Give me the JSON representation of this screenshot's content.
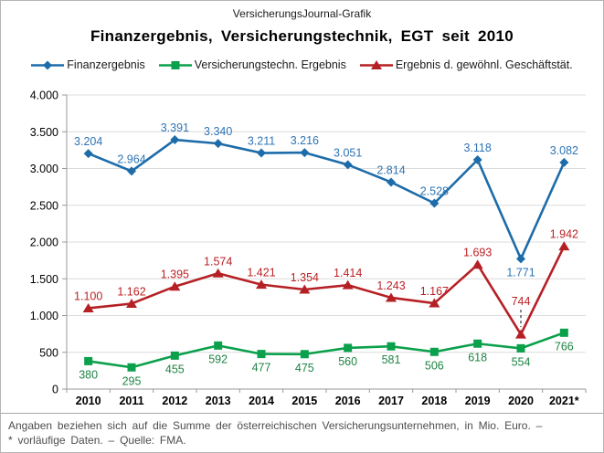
{
  "header": {
    "source_label": "VersicherungsJournal-Grafik",
    "title": "Finanzergebnis, Versicherungstechnik, EGT seit 2010"
  },
  "footer": {
    "line1": "Angaben beziehen sich auf die Summe der österreichischen Versicherungsunternehmen,  in Mio. Euro. –",
    "line2": "* vorläufige  Daten. – Quelle: FMA."
  },
  "colors": {
    "frame_border": "#b5b5b5",
    "gridline": "#dcdcdc",
    "axis": "#999999",
    "blue_line": "#1d6ca9",
    "blue_label": "#2e74b5",
    "green_line": "#0ba04c",
    "green_label": "#1e8444",
    "red_line": "#b52025",
    "red_label": "#bb2025",
    "callout_leader": "#333333"
  },
  "chart_data": {
    "type": "line",
    "title": "Finanzergebnis, Versicherungstechnik, EGT seit 2010",
    "xlabel": "",
    "ylabel": "",
    "ylim": [
      0,
      4000
    ],
    "ytick_step": 500,
    "grid": true,
    "legend_position": "top",
    "number_format": "de-thousands-dot",
    "categories": [
      "2010",
      "2011",
      "2012",
      "2013",
      "2014",
      "2015",
      "2016",
      "2017",
      "2018",
      "2019",
      "2020",
      "2021*"
    ],
    "series": [
      {
        "name": "Finanzergebnis",
        "marker": "diamond",
        "color": "#1d6ca9",
        "label_color": "#2e74b5",
        "values": [
          3204,
          2964,
          3391,
          3340,
          3211,
          3216,
          3051,
          2814,
          2528,
          3118,
          1771,
          3082
        ],
        "label_position": "above",
        "label_overrides": {
          "10": "below"
        }
      },
      {
        "name": "Versicherungstechn. Ergebnis",
        "marker": "square",
        "color": "#0ba04c",
        "label_color": "#1e8444",
        "values": [
          380,
          295,
          455,
          592,
          477,
          475,
          560,
          581,
          506,
          618,
          554,
          766
        ],
        "label_position": "below"
      },
      {
        "name": "Ergebnis d. gewöhnl. Geschäftstät.",
        "marker": "triangle",
        "color": "#b52025",
        "label_color": "#bb2025",
        "values": [
          1100,
          1162,
          1395,
          1574,
          1421,
          1354,
          1414,
          1243,
          1167,
          1693,
          744,
          1942
        ],
        "label_position": "above",
        "callout": {
          "index": 10,
          "raise": 32
        }
      }
    ]
  }
}
